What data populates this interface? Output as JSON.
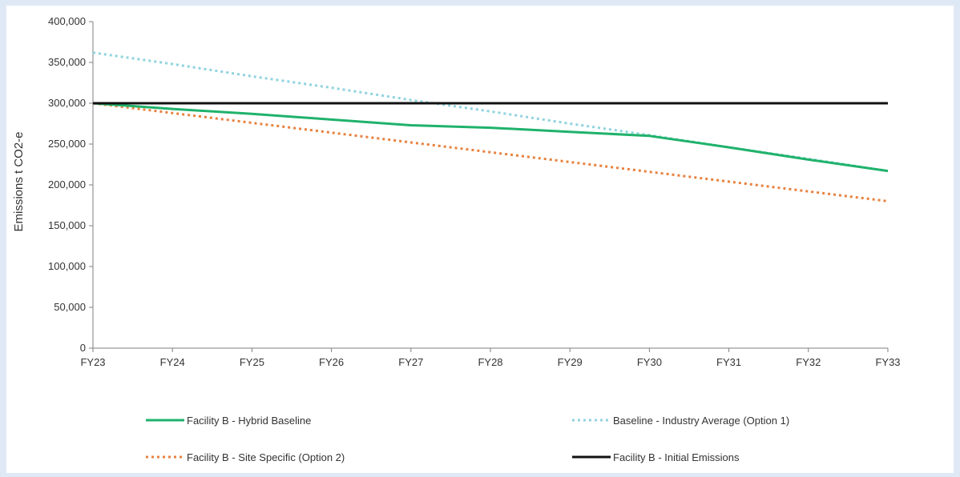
{
  "chart_data": {
    "type": "line",
    "title": "",
    "xlabel": "",
    "ylabel": "Emissions t CO2-e",
    "categories": [
      "FY23",
      "FY24",
      "FY25",
      "FY26",
      "FY27",
      "FY28",
      "FY29",
      "FY30",
      "FY31",
      "FY32",
      "FY33"
    ],
    "ylim": [
      0,
      400000
    ],
    "yticks": [
      0,
      50000,
      100000,
      150000,
      200000,
      250000,
      300000,
      350000,
      400000
    ],
    "ytick_labels": [
      "0",
      "50,000",
      "100,000",
      "150,000",
      "200,000",
      "250,000",
      "300,000",
      "350,000",
      "400,000"
    ],
    "grid": false,
    "legend_position": "bottom",
    "series": [
      {
        "name": "Facility B - Hybrid Baseline",
        "color": "#1fb26b",
        "dash": "solid",
        "values": [
          300000,
          293000,
          287000,
          280000,
          273000,
          270000,
          265000,
          260000,
          246000,
          231000,
          217000
        ]
      },
      {
        "name": "Baseline - Industry Average (Option 1)",
        "color": "#8fd3de",
        "dash": "dotted",
        "values": [
          362000,
          348000,
          333000,
          319000,
          304000,
          290000,
          275000,
          261000,
          246000,
          232000,
          217000
        ]
      },
      {
        "name": "Facility B - Site Specific (Option 2)",
        "color": "#e8813d",
        "dash": "dotted",
        "values": [
          300000,
          288000,
          276000,
          264000,
          252000,
          240000,
          228000,
          216000,
          204000,
          192000,
          180000
        ]
      },
      {
        "name": "Facility B - Initial Emissions",
        "color": "#111111",
        "dash": "solid",
        "values": [
          300000,
          300000,
          300000,
          300000,
          300000,
          300000,
          300000,
          300000,
          300000,
          300000,
          300000
        ]
      }
    ]
  }
}
